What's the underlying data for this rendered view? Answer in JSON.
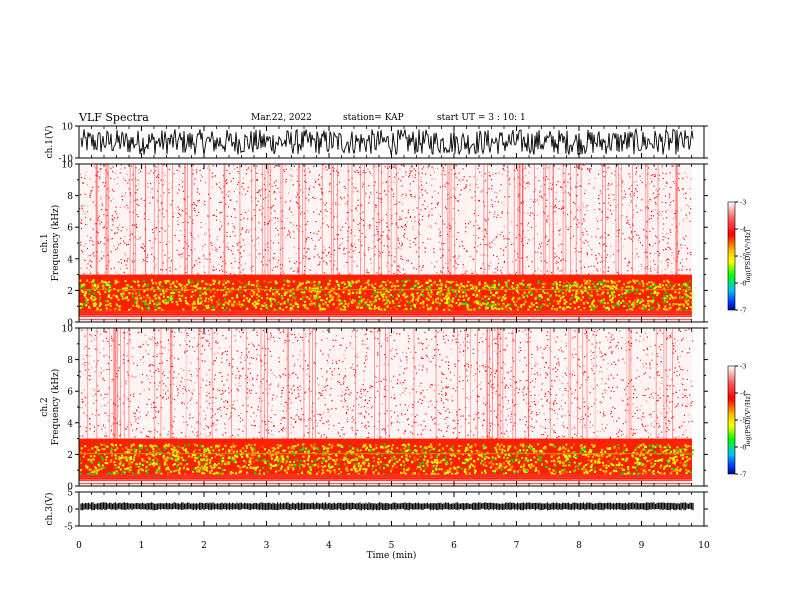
{
  "header": {
    "title": "VLF Spectra",
    "date": "Mar.22, 2022",
    "station": "station= KAP",
    "start_ut": "start UT =  3 : 10: 1"
  },
  "chart_data": [
    {
      "type": "line",
      "ylabel": "ch.1(V)",
      "ylim": [
        -10,
        10
      ],
      "yticks": [
        "10",
        "-10"
      ],
      "xlim": [
        0,
        10
      ]
    },
    {
      "type": "heatmap",
      "ylabel": "ch.1\nFrequency (kHz)",
      "ylabel_lines": [
        "ch.1",
        "Frequency (kHz)"
      ],
      "ylim": [
        0,
        10
      ],
      "yticks": [
        "0",
        "2",
        "4",
        "6",
        "8",
        "10"
      ],
      "xlim": [
        0,
        10
      ],
      "colorbar": {
        "label": "log(PSD)(V²/Hz)",
        "range": [
          -7,
          -3
        ],
        "ticks": [
          "-3",
          "-4",
          "-5",
          "-6",
          "-7"
        ]
      }
    },
    {
      "type": "heatmap",
      "ylabel": "ch.2\nFrequency (kHz)",
      "ylabel_lines": [
        "ch.2",
        "Frequency (kHz)"
      ],
      "ylim": [
        0,
        10
      ],
      "yticks": [
        "0",
        "2",
        "4",
        "6",
        "8",
        "10"
      ],
      "xlim": [
        0,
        10
      ],
      "colorbar": {
        "label": "log(PSD)(V²/Hz)",
        "range": [
          -7,
          -3
        ],
        "ticks": [
          "-3",
          "-4",
          "-5",
          "-6",
          "-7"
        ]
      }
    },
    {
      "type": "line",
      "ylabel": "ch.3(V)",
      "ylim": [
        -5,
        5
      ],
      "yticks": [
        "5",
        "0",
        "-5"
      ],
      "xlim": [
        0,
        10
      ],
      "xlabel": "Time (min)",
      "xticks": [
        "0",
        "1",
        "2",
        "3",
        "4",
        "5",
        "6",
        "7",
        "8",
        "9",
        "10"
      ]
    }
  ],
  "colors": {
    "low": "#0000c8",
    "mid": "#00ff00",
    "high": "#ff0000",
    "bg": "#ffffff"
  }
}
